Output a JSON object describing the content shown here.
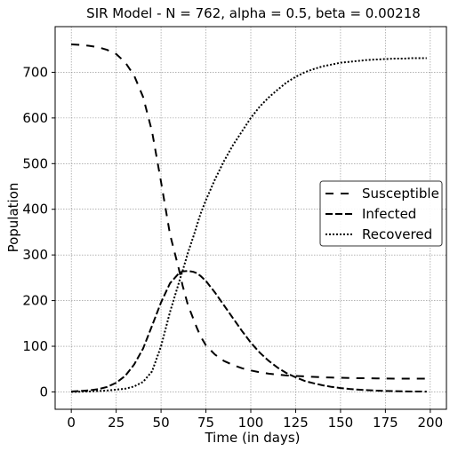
{
  "chart_data": {
    "type": "line",
    "title": "SIR Model - N = 762, alpha = 0.5, beta = 0.00218",
    "xlabel": "Time (in days)",
    "ylabel": "Population",
    "xlim": [
      -9,
      209
    ],
    "ylim": [
      -38,
      800
    ],
    "grid": true,
    "legend_position": "center-right",
    "x_ticks": [
      0,
      25,
      50,
      75,
      100,
      125,
      150,
      175,
      200
    ],
    "x_tick_labels": [
      "0",
      "25",
      "50",
      "75",
      "100",
      "125",
      "150",
      "175",
      "200"
    ],
    "y_ticks": [
      0,
      100,
      200,
      300,
      400,
      500,
      600,
      700
    ],
    "y_tick_labels": [
      "0",
      "100",
      "200",
      "300",
      "400",
      "500",
      "600",
      "700"
    ],
    "colors": {
      "line": "#000000",
      "grid": "#888888",
      "background": "#ffffff"
    },
    "x": [
      0,
      5,
      10,
      15,
      20,
      25,
      30,
      35,
      40,
      45,
      50,
      55,
      60,
      62,
      65,
      68,
      70,
      72,
      75,
      80,
      85,
      90,
      95,
      100,
      105,
      110,
      115,
      120,
      125,
      130,
      135,
      140,
      145,
      150,
      155,
      160,
      165,
      170,
      175,
      180,
      185,
      190,
      195,
      198
    ],
    "series": [
      {
        "name": "Susceptible",
        "dash": "9,8",
        "values": [
          761,
          760,
          758,
          755,
          749,
          740,
          722,
          693,
          646,
          570,
          460,
          345,
          268,
          233,
          190,
          160,
          140,
          122,
          102,
          82,
          68,
          59,
          52,
          47,
          43,
          40,
          38,
          36,
          35,
          34,
          33,
          32,
          31.5,
          31,
          30.5,
          30,
          30,
          29.5,
          29.5,
          29,
          29,
          29,
          29,
          29
        ]
      },
      {
        "name": "Infected",
        "dash": "8,3",
        "values": [
          1,
          2,
          3.5,
          6,
          11,
          20,
          35,
          60,
          95,
          145,
          196,
          238,
          260,
          264,
          265,
          263,
          260,
          254,
          243,
          218,
          190,
          162,
          134,
          108,
          86,
          68,
          53,
          41,
          32,
          24,
          19,
          14.5,
          11,
          8.5,
          6.5,
          5,
          3.8,
          2.9,
          2.2,
          1.7,
          1.3,
          1,
          0.8,
          0.6
        ]
      },
      {
        "name": "Recovered",
        "dash": "2,2",
        "values": [
          0,
          0.5,
          1,
          2,
          3,
          5,
          7,
          12,
          22,
          45,
          100,
          175,
          240,
          265,
          305,
          340,
          365,
          390,
          420,
          465,
          505,
          540,
          570,
          600,
          625,
          645,
          662,
          678,
          690,
          700,
          707,
          713,
          717,
          721,
          723,
          725,
          727,
          728,
          729,
          730,
          730,
          731,
          731,
          731
        ]
      }
    ]
  }
}
